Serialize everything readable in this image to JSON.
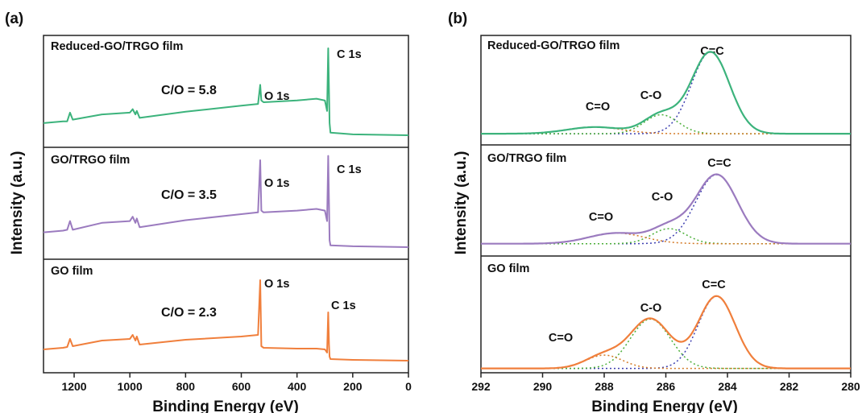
{
  "chart_data": [
    {
      "panel_label": "(a)",
      "type": "line",
      "xlabel": "Binding Energy (eV)",
      "ylabel": "Intensity (a.u.)",
      "xlim": [
        1310,
        0
      ],
      "x_reversed": true,
      "x_ticks": [
        "1200",
        "1000",
        "800",
        "600",
        "400",
        "200",
        "0"
      ],
      "y_ticks": false,
      "subplots": [
        {
          "title": "Reduced-GO/TRGO film",
          "annotation": "C/O = 5.8",
          "peak_labels": [
            "O 1s",
            "C 1s"
          ],
          "color": "#3cb37c",
          "x": [
            1310,
            1240,
            1225,
            1215,
            1205,
            1100,
            1000,
            990,
            980,
            975,
            965,
            800,
            600,
            540,
            532,
            528,
            520,
            400,
            330,
            300,
            292,
            288,
            285,
            283,
            280,
            200,
            0
          ],
          "y": [
            0.14,
            0.16,
            0.16,
            0.26,
            0.18,
            0.24,
            0.26,
            0.3,
            0.24,
            0.28,
            0.2,
            0.27,
            0.34,
            0.36,
            0.58,
            0.4,
            0.38,
            0.4,
            0.42,
            0.4,
            0.28,
            1.0,
            0.5,
            0.14,
            0.03,
            0.01,
            0.0
          ]
        },
        {
          "title": "GO/TRGO film",
          "annotation": "C/O = 3.5",
          "peak_labels": [
            "O 1s",
            "C 1s"
          ],
          "color": "#9b7bbf",
          "x": [
            1310,
            1240,
            1225,
            1215,
            1205,
            1100,
            1000,
            990,
            980,
            975,
            965,
            800,
            600,
            540,
            532,
            528,
            520,
            400,
            330,
            300,
            292,
            288,
            285,
            283,
            280,
            200,
            0
          ],
          "y": [
            0.17,
            0.19,
            0.2,
            0.3,
            0.2,
            0.28,
            0.3,
            0.35,
            0.28,
            0.33,
            0.23,
            0.31,
            0.38,
            0.4,
            1.0,
            0.42,
            0.4,
            0.42,
            0.44,
            0.42,
            0.3,
            1.05,
            0.5,
            0.08,
            0.02,
            0.01,
            0.0
          ]
        },
        {
          "title": "GO film",
          "annotation": "C/O = 2.3",
          "peak_labels": [
            "O 1s",
            "C 1s"
          ],
          "color": "#f07f3c",
          "x": [
            1310,
            1240,
            1225,
            1215,
            1205,
            1100,
            1000,
            990,
            980,
            975,
            965,
            800,
            600,
            540,
            532,
            528,
            520,
            400,
            330,
            300,
            292,
            288,
            285,
            283,
            280,
            200,
            0
          ],
          "y": [
            0.14,
            0.16,
            0.17,
            0.27,
            0.18,
            0.25,
            0.27,
            0.32,
            0.25,
            0.3,
            0.2,
            0.26,
            0.3,
            0.32,
            1.0,
            0.18,
            0.16,
            0.15,
            0.15,
            0.14,
            0.1,
            0.6,
            0.2,
            0.05,
            0.02,
            0.01,
            0.0
          ]
        }
      ]
    },
    {
      "panel_label": "(b)",
      "type": "line",
      "xlabel": "Binding Energy (eV)",
      "ylabel": "Intensity (a.u.)",
      "xlim": [
        292,
        280
      ],
      "x_reversed": true,
      "x_ticks": [
        "292",
        "290",
        "288",
        "286",
        "284",
        "282",
        "280"
      ],
      "y_ticks": false,
      "subplots": [
        {
          "title": "Reduced-GO/TRGO film",
          "color": "#3cb37c",
          "baseline": 0.05,
          "components": [
            {
              "label": "C=C",
              "center": 284.55,
              "height": 0.86,
              "sigma": 0.62,
              "color": "#3d3fb0"
            },
            {
              "label": "C-O",
              "center": 286.15,
              "height": 0.2,
              "sigma": 0.55,
              "color": "#4caf3a"
            },
            {
              "label": "C=O",
              "center": 288.3,
              "height": 0.07,
              "sigma": 0.9,
              "color": "#d47a26"
            }
          ]
        },
        {
          "title": "GO/TRGO film",
          "color": "#9b7bbf",
          "baseline": 0.03,
          "components": [
            {
              "label": "C=C",
              "center": 284.35,
              "height": 0.78,
              "sigma": 0.68,
              "color": "#3d3fb0"
            },
            {
              "label": "C-O",
              "center": 285.9,
              "height": 0.17,
              "sigma": 0.55,
              "color": "#4caf3a"
            },
            {
              "label": "C=O",
              "center": 287.6,
              "height": 0.12,
              "sigma": 0.9,
              "color": "#d47a26"
            }
          ]
        },
        {
          "title": "GO film",
          "color": "#f07f3c",
          "baseline": 0.02,
          "components": [
            {
              "label": "C=C",
              "center": 284.35,
              "height": 0.76,
              "sigma": 0.6,
              "color": "#3d3fb0"
            },
            {
              "label": "C-O",
              "center": 286.5,
              "height": 0.52,
              "sigma": 0.65,
              "color": "#4caf3a"
            },
            {
              "label": "C=O",
              "center": 288.0,
              "height": 0.14,
              "sigma": 0.6,
              "color": "#d47a26"
            }
          ]
        }
      ]
    }
  ]
}
